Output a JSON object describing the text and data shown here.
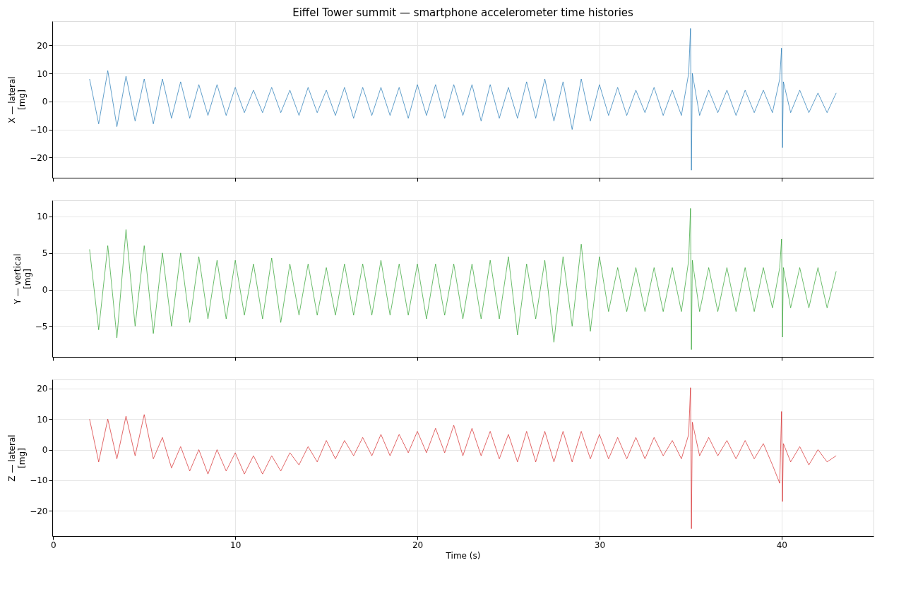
{
  "chart_data": [
    {
      "type": "line",
      "title": "Eiffel Tower summit — smartphone accelerometer time histories",
      "ylabel": "X — lateral [mg]",
      "xlim": [
        -0.05,
        45.05
      ],
      "xticks": [
        0,
        10,
        20,
        30,
        40
      ],
      "ylim": [
        -27.2,
        28.6
      ],
      "yticks": [
        -20,
        -10,
        0,
        10,
        20
      ],
      "grid": true,
      "tick_labels": "y",
      "x": [
        2,
        2.5,
        3,
        3.5,
        4,
        4.5,
        5,
        5.5,
        6,
        6.5,
        7,
        7.5,
        8,
        8.5,
        9,
        9.5,
        10,
        10.5,
        11,
        11.5,
        12,
        12.5,
        13,
        13.5,
        14,
        14.5,
        15,
        15.5,
        16,
        16.5,
        17,
        17.5,
        18,
        18.5,
        19,
        19.5,
        20,
        20.5,
        21,
        21.5,
        22,
        22.5,
        23,
        23.5,
        24,
        24.5,
        25,
        25.5,
        26,
        26.5,
        27,
        27.5,
        28,
        28.5,
        29,
        29.5,
        30,
        30.5,
        31,
        31.5,
        32,
        32.5,
        33,
        33.5,
        34,
        34.5,
        34.9,
        35,
        35.05,
        35.1,
        35.5,
        36,
        36.5,
        37,
        37.5,
        38,
        38.5,
        39,
        39.5,
        39.9,
        40,
        40.05,
        40.1,
        40.5,
        41,
        41.5,
        42,
        42.5,
        43
      ],
      "series": [
        {
          "color": "#1f77b4",
          "values": [
            8,
            -8,
            11,
            -9,
            9,
            -7,
            8,
            -8,
            8,
            -6,
            7,
            -6,
            6,
            -5,
            6,
            -5,
            5,
            -4,
            4,
            -4,
            5,
            -4,
            4,
            -5,
            5,
            -4,
            4,
            -5,
            5,
            -6,
            5,
            -5,
            5,
            -5,
            5,
            -6,
            6,
            -5,
            6,
            -6,
            6,
            -5,
            6,
            -7,
            6,
            -6,
            5,
            -6,
            7,
            -6,
            8,
            -7,
            7,
            -10,
            8,
            -7,
            6,
            -5,
            5,
            -5,
            4,
            -4,
            5,
            -5,
            4,
            -5,
            10,
            26,
            -24.5,
            10,
            -5,
            4,
            -4,
            4,
            -5,
            4,
            -4,
            4,
            -4,
            8,
            19,
            -16.5,
            7,
            -4,
            4,
            -4,
            3,
            -4,
            3
          ]
        }
      ]
    },
    {
      "type": "line",
      "ylabel": "Y — vertical [mg]",
      "xlim": [
        -0.05,
        45.05
      ],
      "xticks": [
        0,
        10,
        20,
        30,
        40
      ],
      "ylim": [
        -9.2,
        12.2
      ],
      "yticks": [
        -5,
        0,
        5,
        10
      ],
      "grid": true,
      "tick_labels": "y",
      "x": [
        2,
        2.5,
        3,
        3.5,
        4,
        4.5,
        5,
        5.5,
        6,
        6.5,
        7,
        7.5,
        8,
        8.5,
        9,
        9.5,
        10,
        10.5,
        11,
        11.5,
        12,
        12.5,
        13,
        13.5,
        14,
        14.5,
        15,
        15.5,
        16,
        16.5,
        17,
        17.5,
        18,
        18.5,
        19,
        19.5,
        20,
        20.5,
        21,
        21.5,
        22,
        22.5,
        23,
        23.5,
        24,
        24.5,
        25,
        25.5,
        26,
        26.5,
        27,
        27.5,
        28,
        28.5,
        29,
        29.5,
        30,
        30.5,
        31,
        31.5,
        32,
        32.5,
        33,
        33.5,
        34,
        34.5,
        34.9,
        35,
        35.05,
        35.1,
        35.5,
        36,
        36.5,
        37,
        37.5,
        38,
        38.5,
        39,
        39.5,
        39.9,
        40,
        40.05,
        40.1,
        40.5,
        41,
        41.5,
        42,
        42.5,
        43
      ],
      "series": [
        {
          "color": "#2ca02c",
          "values": [
            5.5,
            -5.5,
            6,
            -6.6,
            8.2,
            -5,
            6,
            -6,
            5,
            -5,
            5,
            -4.5,
            4.5,
            -4,
            4,
            -4,
            4,
            -3.5,
            3.5,
            -4,
            4.3,
            -4.5,
            3.5,
            -3.5,
            3.5,
            -3.5,
            3,
            -3.5,
            3.5,
            -3.5,
            3.5,
            -3.5,
            4,
            -3.5,
            3.5,
            -3.5,
            3.5,
            -4,
            3.5,
            -3.5,
            3.5,
            -4,
            3.5,
            -4,
            4,
            -4,
            4.5,
            -6.2,
            3.5,
            -4,
            4,
            -7.2,
            4.5,
            -5,
            6.2,
            -5.7,
            4.5,
            -3,
            3,
            -3,
            3,
            -3,
            3,
            -3,
            3,
            -3,
            4,
            11.1,
            -8.2,
            4,
            -3,
            3,
            -3,
            3,
            -3,
            3,
            -3,
            3,
            -2.5,
            3,
            6.9,
            -6.5,
            3,
            -2.5,
            3,
            -2.5,
            3,
            -2.5,
            2.5
          ]
        }
      ]
    },
    {
      "type": "line",
      "ylabel": "Z — lateral [mg]",
      "xlabel": "Time (s)",
      "xlim": [
        -0.05,
        45.05
      ],
      "xticks": [
        0,
        10,
        20,
        30,
        40
      ],
      "ylim": [
        -28.3,
        23
      ],
      "yticks": [
        -20,
        -10,
        0,
        10,
        20
      ],
      "grid": true,
      "x": [
        2,
        2.5,
        3,
        3.5,
        4,
        4.5,
        5,
        5.5,
        6,
        6.5,
        7,
        7.5,
        8,
        8.5,
        9,
        9.5,
        10,
        10.5,
        11,
        11.5,
        12,
        12.5,
        13,
        13.5,
        14,
        14.5,
        15,
        15.5,
        16,
        16.5,
        17,
        17.5,
        18,
        18.5,
        19,
        19.5,
        20,
        20.5,
        21,
        21.5,
        22,
        22.5,
        23,
        23.5,
        24,
        24.5,
        25,
        25.5,
        26,
        26.5,
        27,
        27.5,
        28,
        28.5,
        29,
        29.5,
        30,
        30.5,
        31,
        31.5,
        32,
        32.5,
        33,
        33.5,
        34,
        34.5,
        34.9,
        35,
        35.05,
        35.1,
        35.5,
        36,
        36.5,
        37,
        37.5,
        38,
        38.5,
        39,
        39.5,
        39.9,
        40,
        40.05,
        40.1,
        40.5,
        41,
        41.5,
        42,
        42.5,
        43
      ],
      "series": [
        {
          "color": "#d62728",
          "values": [
            10,
            -4,
            10,
            -3,
            11,
            -2,
            11.5,
            -3,
            4,
            -6,
            1,
            -7,
            0,
            -8,
            0,
            -7,
            -1,
            -8,
            -2,
            -8,
            -2,
            -7,
            -1,
            -5,
            1,
            -4,
            3,
            -3,
            3,
            -2,
            4,
            -2,
            5,
            -2,
            5,
            -1,
            6,
            -1,
            7,
            -1,
            8,
            -2,
            7,
            -2,
            6,
            -3,
            5,
            -4,
            6,
            -4,
            6,
            -4,
            6,
            -4,
            6,
            -3,
            5,
            -3,
            4,
            -3,
            4,
            -3,
            4,
            -2,
            3,
            -3,
            5,
            20.3,
            -25.9,
            9,
            -2,
            4,
            -2,
            3,
            -3,
            3,
            -3,
            2,
            -5,
            -11,
            12.5,
            -17,
            2,
            -4,
            1,
            -5,
            0,
            -4,
            -2
          ]
        }
      ]
    }
  ]
}
